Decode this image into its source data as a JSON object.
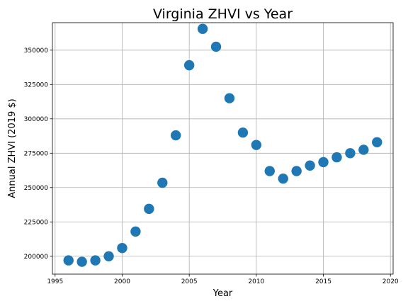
{
  "chart_data": {
    "type": "scatter",
    "title": "Virginia ZHVI vs Year",
    "xlabel": "Year",
    "ylabel": "Annual ZHVI (2019 $)",
    "grid": true,
    "xlim": [
      1994.8,
      2020.2
    ],
    "ylim": [
      187000,
      370000
    ],
    "x_ticks": [
      1995,
      2000,
      2005,
      2010,
      2015,
      2020
    ],
    "y_ticks": [
      200000,
      225000,
      250000,
      275000,
      300000,
      325000,
      350000
    ],
    "marker_color": "#1f77b4",
    "x": [
      1996,
      1997,
      1998,
      1999,
      2000,
      2001,
      2002,
      2003,
      2004,
      2005,
      2006,
      2007,
      2008,
      2009,
      2010,
      2011,
      2012,
      2013,
      2014,
      2015,
      2016,
      2017,
      2018,
      2019
    ],
    "y": [
      197000,
      196000,
      197000,
      200000,
      206000,
      218000,
      234500,
      253500,
      288000,
      339000,
      365500,
      352500,
      315000,
      290000,
      281000,
      262000,
      256500,
      262000,
      266000,
      268500,
      272000,
      275000,
      277500,
      283000
    ]
  }
}
